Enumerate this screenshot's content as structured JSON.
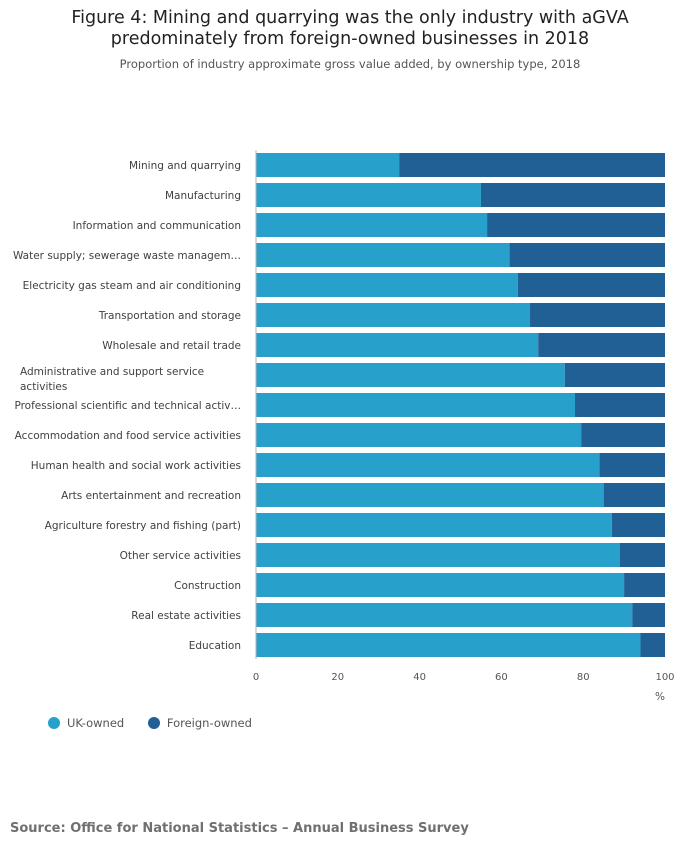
{
  "header": {
    "title_line1": "Figure 4: Mining and quarrying was the only industry with aGVA",
    "title_line2": "predominately from foreign-owned businesses in 2018",
    "subtitle": "Proportion of industry approximate gross value added, by ownership type, 2018"
  },
  "footer": {
    "source": "Source: Office for National Statistics – Annual Business Survey"
  },
  "chart_data": {
    "type": "bar",
    "orientation": "horizontal",
    "stacked": true,
    "title": "Figure 4: Mining and quarrying was the only industry with aGVA predominately from foreign-owned businesses in 2018",
    "subtitle": "Proportion of industry approximate gross value added, by ownership type, 2018",
    "xlabel": "%",
    "ylabel": "",
    "xlim": [
      0,
      100
    ],
    "xticks": [
      0,
      20,
      40,
      60,
      80,
      100
    ],
    "grid": false,
    "legend_position": "bottom-left",
    "categories": [
      "Mining and quarrying",
      "Manufacturing",
      "Information and communication",
      "Water supply; sewerage waste managem…",
      "Electricity gas steam and air conditioning",
      "Transportation and storage",
      "Wholesale and retail trade",
      "Administrative and support service activities",
      "Professional scientific and technical activ…",
      "Accommodation and food service activities",
      "Human health and social work activities",
      "Arts entertainment and recreation",
      "Agriculture forestry and fishing (part)",
      "Other service activities",
      "Construction",
      "Real estate activities",
      "Education"
    ],
    "series": [
      {
        "name": "UK-owned",
        "color": "#27a0cc",
        "values": [
          35,
          55,
          56.5,
          62,
          64,
          67,
          69,
          75.5,
          78,
          79.5,
          84,
          85,
          87,
          89,
          90,
          92,
          94
        ]
      },
      {
        "name": "Foreign-owned",
        "color": "#206095",
        "values": [
          65,
          45,
          43.5,
          38,
          36,
          33,
          31,
          24.5,
          22,
          20.5,
          16,
          15,
          13,
          11,
          10,
          8,
          6
        ]
      }
    ]
  }
}
